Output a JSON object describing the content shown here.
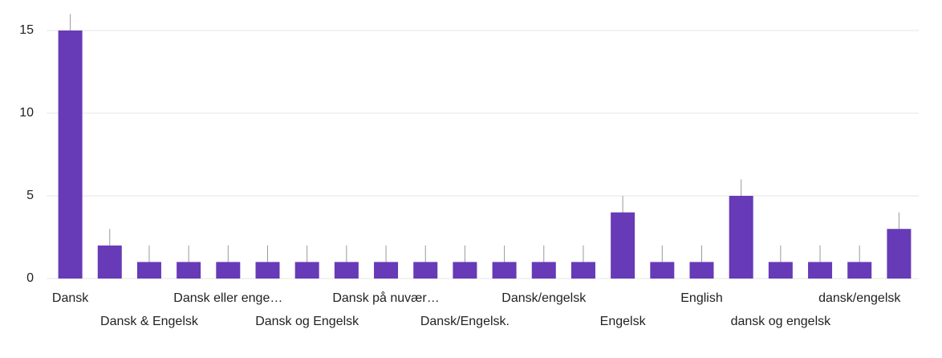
{
  "chart_data": {
    "type": "bar",
    "categories": [
      "Dansk",
      null,
      "Dansk & Engelsk",
      null,
      "Dansk eller enge…",
      null,
      "Dansk og Engelsk",
      null,
      "Dansk på nuvær…",
      null,
      "Dansk/Engelsk.",
      null,
      "Dansk/engelsk",
      null,
      "Engelsk",
      null,
      "English",
      null,
      "dansk og engelsk",
      null,
      "dansk/engelsk",
      null
    ],
    "values": [
      15,
      2,
      1,
      1,
      1,
      1,
      1,
      1,
      1,
      1,
      1,
      1,
      1,
      1,
      4,
      1,
      1,
      5,
      1,
      1,
      1,
      3
    ],
    "color": "#673ab7",
    "ylim": [
      0,
      15
    ],
    "yticks": [
      0,
      5,
      10,
      15
    ],
    "grid": true
  }
}
